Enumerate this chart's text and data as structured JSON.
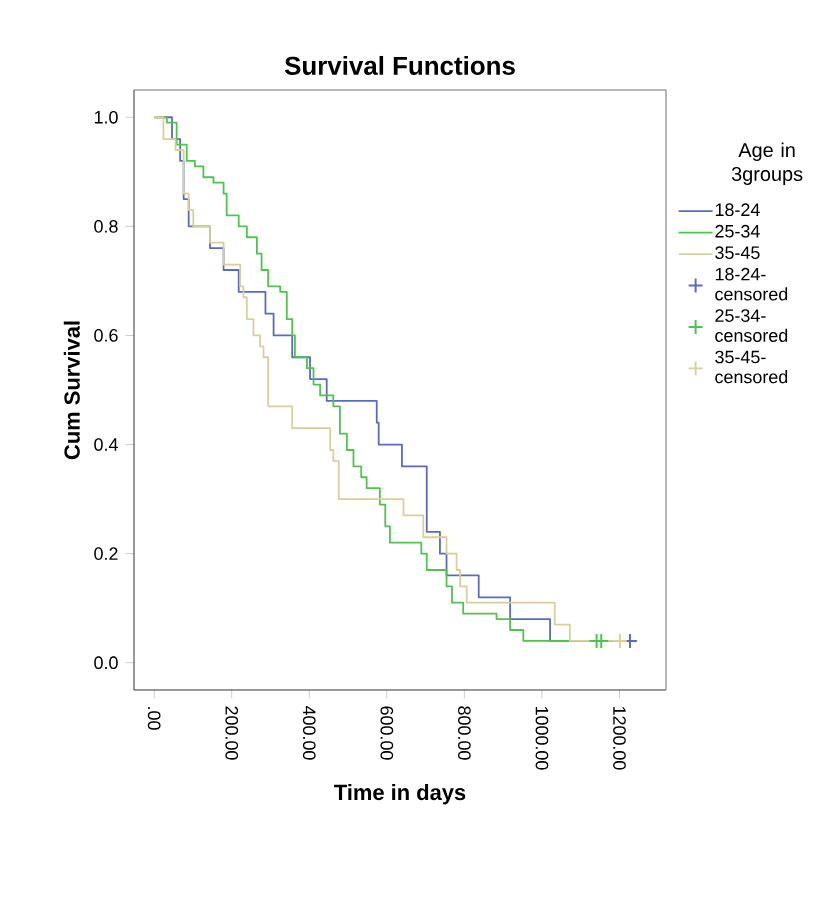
{
  "chart_data": {
    "type": "step",
    "title": "Survival Functions",
    "xlabel": "Time in days",
    "ylabel": "Cum Survival",
    "legend_title": "Age in 3groups",
    "legend": "right",
    "xlim": [
      -52,
      1320
    ],
    "ylim": [
      -0.05,
      1.05
    ],
    "xticks": [
      {
        "value": 0,
        "label": ".00"
      },
      {
        "value": 200,
        "label": "200.00"
      },
      {
        "value": 400,
        "label": "400.00"
      },
      {
        "value": 600,
        "label": "600.00"
      },
      {
        "value": 800,
        "label": "800.00"
      },
      {
        "value": 1000,
        "label": "1000.00"
      },
      {
        "value": 1200,
        "label": "1200.00"
      }
    ],
    "yticks": [
      {
        "value": 0,
        "label": "0.0"
      },
      0.2,
      0.4,
      0.6,
      0.8,
      {
        "value": 1,
        "label": "1.0"
      }
    ],
    "series": [
      {
        "name": "18-24",
        "color": "#5a6bbf",
        "x": [
          0,
          46,
          67,
          76,
          89,
          144,
          179,
          218,
          287,
          308,
          356,
          402,
          445,
          574,
          579,
          639,
          703,
          737,
          754,
          837,
          918,
          1021,
          1227
        ],
        "values": [
          1.0,
          0.96,
          0.92,
          0.85,
          0.8,
          0.76,
          0.72,
          0.68,
          0.64,
          0.6,
          0.56,
          0.52,
          0.48,
          0.44,
          0.4,
          0.36,
          0.24,
          0.2,
          0.16,
          0.12,
          0.08,
          0.04,
          0.04
        ]
      },
      {
        "name": "25-34",
        "color": "#4ec44e",
        "x": [
          0,
          33,
          58,
          84,
          105,
          127,
          153,
          179,
          187,
          218,
          239,
          265,
          277,
          294,
          325,
          342,
          356,
          363,
          394,
          411,
          428,
          462,
          479,
          497,
          514,
          534,
          548,
          582,
          596,
          608,
          689,
          703,
          754,
          768,
          797,
          883,
          918,
          952,
          1167
        ],
        "values": [
          1.0,
          0.99,
          0.95,
          0.92,
          0.91,
          0.89,
          0.88,
          0.86,
          0.82,
          0.8,
          0.78,
          0.75,
          0.72,
          0.69,
          0.68,
          0.63,
          0.6,
          0.56,
          0.54,
          0.51,
          0.49,
          0.47,
          0.42,
          0.39,
          0.36,
          0.34,
          0.32,
          0.29,
          0.25,
          0.22,
          0.2,
          0.17,
          0.14,
          0.11,
          0.09,
          0.08,
          0.06,
          0.04,
          0.04
        ]
      },
      {
        "name": "35-45",
        "color": "#d8cf9c",
        "x": [
          0,
          24,
          55,
          76,
          89,
          101,
          144,
          179,
          222,
          230,
          239,
          256,
          273,
          282,
          294,
          356,
          454,
          462,
          476,
          643,
          694,
          754,
          780,
          789,
          806,
          1033,
          1072,
          1201
        ],
        "values": [
          1.0,
          0.96,
          0.94,
          0.86,
          0.83,
          0.8,
          0.77,
          0.73,
          0.69,
          0.67,
          0.63,
          0.6,
          0.58,
          0.56,
          0.47,
          0.43,
          0.39,
          0.37,
          0.3,
          0.27,
          0.23,
          0.2,
          0.17,
          0.14,
          0.11,
          0.07,
          0.04,
          0.04
        ]
      },
      {
        "name": "18-24-censored",
        "type": "scatter",
        "marker": "cross",
        "color": "#5a6bbf",
        "x": [
          1227
        ],
        "values": [
          0.04
        ]
      },
      {
        "name": "25-34-censored",
        "type": "scatter",
        "marker": "cross",
        "color": "#4ec44e",
        "x": [
          1141,
          1153
        ],
        "values": [
          0.04,
          0.04
        ]
      },
      {
        "name": "35-45-censored",
        "type": "scatter",
        "marker": "cross",
        "color": "#d8cf9c",
        "x": [
          1201
        ],
        "values": [
          0.04
        ]
      }
    ]
  }
}
